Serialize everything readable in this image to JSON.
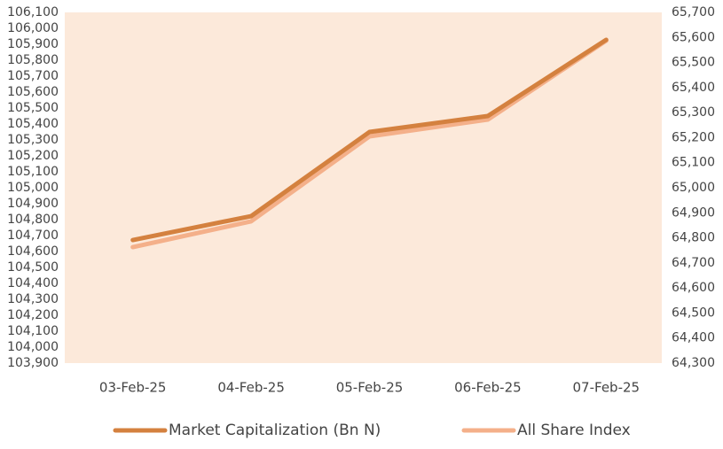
{
  "chart_data": {
    "type": "line",
    "categories": [
      "03-Feb-25",
      "04-Feb-25",
      "05-Feb-25",
      "06-Feb-25",
      "07-Feb-25"
    ],
    "series": [
      {
        "name": "Market Capitalization (Bn N)",
        "color": "#d4813f",
        "values": [
          104672,
          104822,
          105350,
          105450,
          105928
        ]
      },
      {
        "name": "All Share Index",
        "color": "#f4b08a",
        "axis": "y2",
        "values": [
          64763,
          64866,
          65205,
          65272,
          65587
        ]
      }
    ],
    "ylim": [
      103900,
      106100
    ],
    "yticks": [
      {
        "value": 103900,
        "label": "103,900"
      },
      {
        "value": 104000,
        "label": "104,000"
      },
      {
        "value": 104100,
        "label": "104,100"
      },
      {
        "value": 104200,
        "label": "104,200"
      },
      {
        "value": 104300,
        "label": "104,300"
      },
      {
        "value": 104400,
        "label": "104,400"
      },
      {
        "value": 104500,
        "label": "104,500"
      },
      {
        "value": 104600,
        "label": "104,600"
      },
      {
        "value": 104700,
        "label": "104,700"
      },
      {
        "value": 104800,
        "label": "104,800"
      },
      {
        "value": 104900,
        "label": "104,900"
      },
      {
        "value": 105000,
        "label": "105,000"
      },
      {
        "value": 105100,
        "label": "105,100"
      },
      {
        "value": 105200,
        "label": "105,200"
      },
      {
        "value": 105300,
        "label": "105,300"
      },
      {
        "value": 105400,
        "label": "105,400"
      },
      {
        "value": 105500,
        "label": "105,500"
      },
      {
        "value": 105600,
        "label": "105,600"
      },
      {
        "value": 105700,
        "label": "105,700"
      },
      {
        "value": 105800,
        "label": "105,800"
      },
      {
        "value": 105900,
        "label": "105,900"
      },
      {
        "value": 106000,
        "label": "106,000"
      },
      {
        "value": 106100,
        "label": "106,100"
      }
    ],
    "y2lim": [
      64300,
      65700
    ],
    "y2ticks": [
      {
        "value": 64300,
        "label": "64,300"
      },
      {
        "value": 64400,
        "label": "64,400"
      },
      {
        "value": 64500,
        "label": "64,500"
      },
      {
        "value": 64600,
        "label": "64,600"
      },
      {
        "value": 64700,
        "label": "64,700"
      },
      {
        "value": 64800,
        "label": "64,800"
      },
      {
        "value": 64900,
        "label": "64,900"
      },
      {
        "value": 65000,
        "label": "65,000"
      },
      {
        "value": 65100,
        "label": "65,100"
      },
      {
        "value": 65200,
        "label": "65,200"
      },
      {
        "value": 65300,
        "label": "65,300"
      },
      {
        "value": 65400,
        "label": "65,400"
      },
      {
        "value": 65500,
        "label": "65,500"
      },
      {
        "value": 65600,
        "label": "65,600"
      },
      {
        "value": 65700,
        "label": "65,700"
      }
    ],
    "background": "#fce9da",
    "legend": "bottom"
  }
}
